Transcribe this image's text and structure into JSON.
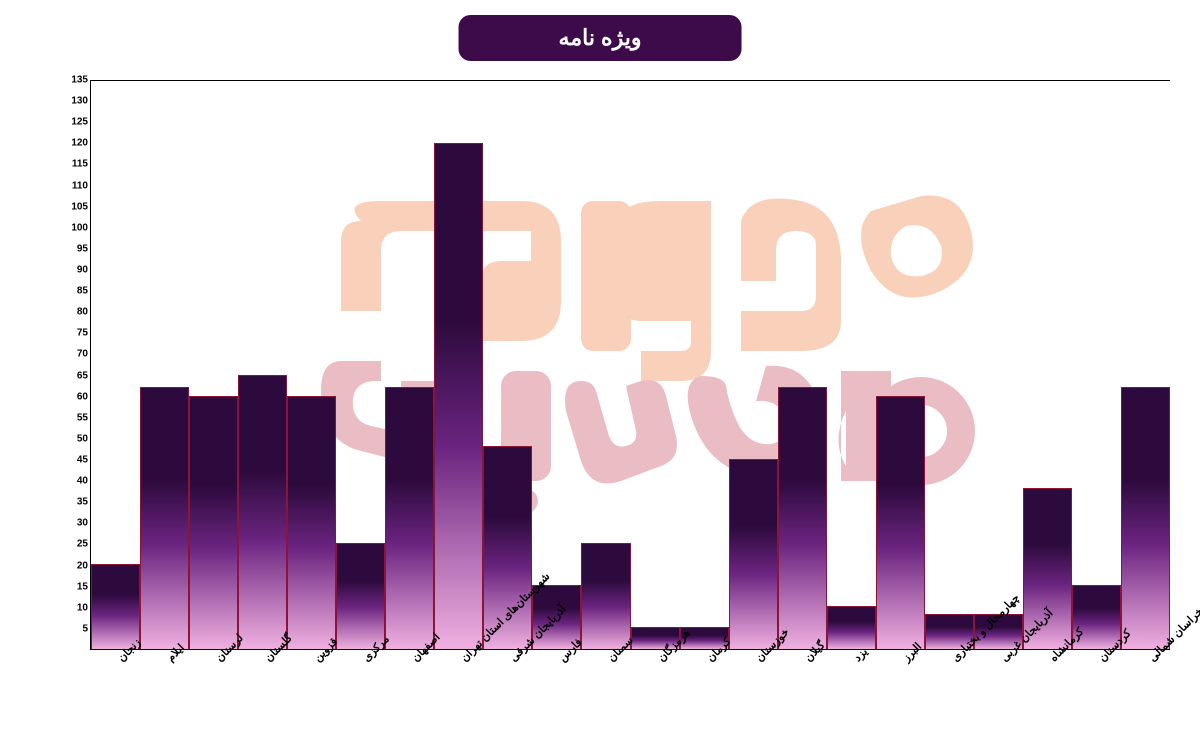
{
  "title": "ویژه نامه",
  "chart": {
    "type": "bar",
    "ylim": [
      0,
      135
    ],
    "ytick_step": 5,
    "yticks": [
      5,
      10,
      15,
      20,
      25,
      30,
      35,
      40,
      45,
      50,
      55,
      60,
      65,
      70,
      75,
      80,
      85,
      90,
      95,
      100,
      105,
      110,
      115,
      120,
      125,
      130,
      135
    ],
    "background_color": "#ffffff",
    "border_color": "#000000",
    "bar_border_color": "#8b1538",
    "gradient_top": "#2d0a3d",
    "gradient_mid": "#6b2480",
    "gradient_bottom": "#f0b0e0",
    "title_bg": "#3d0b4a",
    "title_color": "#ffffff",
    "title_fontsize": 22,
    "label_fontsize": 11,
    "tick_fontsize": 10,
    "watermark_color1": "#f5a57a",
    "watermark_color2": "#d67b8a",
    "categories": [
      "زنجان",
      "ایلام",
      "لرستان",
      "گلستان",
      "قزوین",
      "مرکزی",
      "اصفهان",
      "شهرستان‌های استان تهران",
      "آذربایجان شرقی",
      "فارس",
      "سمنان",
      "هرمزگان",
      "کرمان",
      "خوزستان",
      "گیلان",
      "یزد",
      "البرز",
      "چهارمحال و بختیاری",
      "آذربایجان غربی",
      "کرمانشاه",
      "کردستان",
      "خراسان شمالی"
    ],
    "values": [
      20,
      62,
      60,
      65,
      60,
      25,
      62,
      120,
      48,
      15,
      25,
      5,
      5,
      45,
      62,
      10,
      60,
      8,
      8,
      38,
      15,
      62
    ]
  }
}
